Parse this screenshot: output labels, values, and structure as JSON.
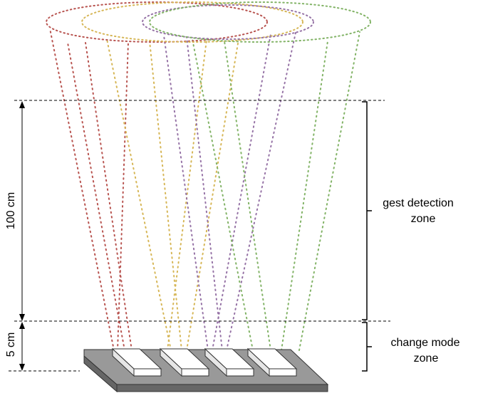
{
  "labels": {
    "distance_far": "100 cm",
    "distance_near": "5 cm",
    "zone_upper_line1": "gest detection",
    "zone_upper_line2": "zone",
    "zone_lower_line1": "change mode",
    "zone_lower_line2": "zone"
  },
  "colors": {
    "sensor1": "#b85450",
    "sensor2": "#d6b656",
    "sensor3": "#9673a6",
    "sensor4": "#82b366",
    "board_top": "#999999",
    "board_front": "#666666",
    "sensor_face": "#ffffff"
  },
  "sensor_count": 4
}
